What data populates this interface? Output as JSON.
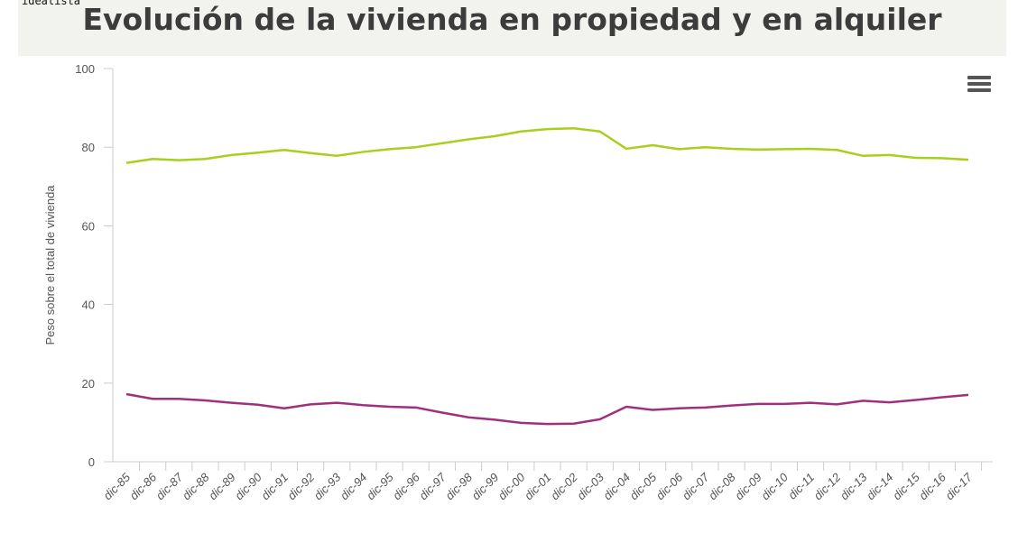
{
  "brand": "idealista",
  "chart_data": {
    "type": "line",
    "title": "Evolución de la vivienda en propiedad y en alquiler",
    "xlabel": "",
    "ylabel": "Peso sobre el total de vivienda",
    "ylim": [
      0,
      100
    ],
    "yticks": [
      0,
      20,
      40,
      60,
      80,
      100
    ],
    "grid": false,
    "categories": [
      "dic-85",
      "dic-86",
      "dic-87",
      "dic-88",
      "dic-89",
      "dic-90",
      "dic-91",
      "dic-92",
      "dic-93",
      "dic-94",
      "dic-95",
      "dic-96",
      "dic-97",
      "dic-98",
      "dic-99",
      "dic-00",
      "dic-01",
      "dic-02",
      "dic-03",
      "dic-04",
      "dic-05",
      "dic-06",
      "dic-07",
      "dic-08",
      "dic-09",
      "dic-10",
      "dic-11",
      "dic-12",
      "dic-13",
      "dic-14",
      "dic-15",
      "dic-16",
      "dic-17"
    ],
    "series": [
      {
        "color": "#a8cf1e",
        "values": [
          76,
          77,
          76.7,
          77,
          78,
          78.6,
          79.3,
          78.5,
          77.8,
          78.8,
          79.5,
          80,
          81,
          82,
          82.8,
          84,
          84.6,
          84.8,
          84,
          79.6,
          80.5,
          79.5,
          80,
          79.6,
          79.4,
          79.5,
          79.6,
          79.3,
          77.8,
          78,
          77.3,
          77.2,
          76.8
        ]
      },
      {
        "color": "#a0307e",
        "values": [
          17.2,
          16,
          16,
          15.6,
          15,
          14.5,
          13.6,
          14.6,
          15,
          14.4,
          14,
          13.8,
          12.5,
          11.3,
          10.7,
          9.9,
          9.6,
          9.7,
          10.8,
          14,
          13.2,
          13.6,
          13.8,
          14.3,
          14.7,
          14.7,
          15,
          14.6,
          15.5,
          15.1,
          15.7,
          16.4,
          17
        ]
      }
    ]
  },
  "menu_icon": "hamburger-icon"
}
